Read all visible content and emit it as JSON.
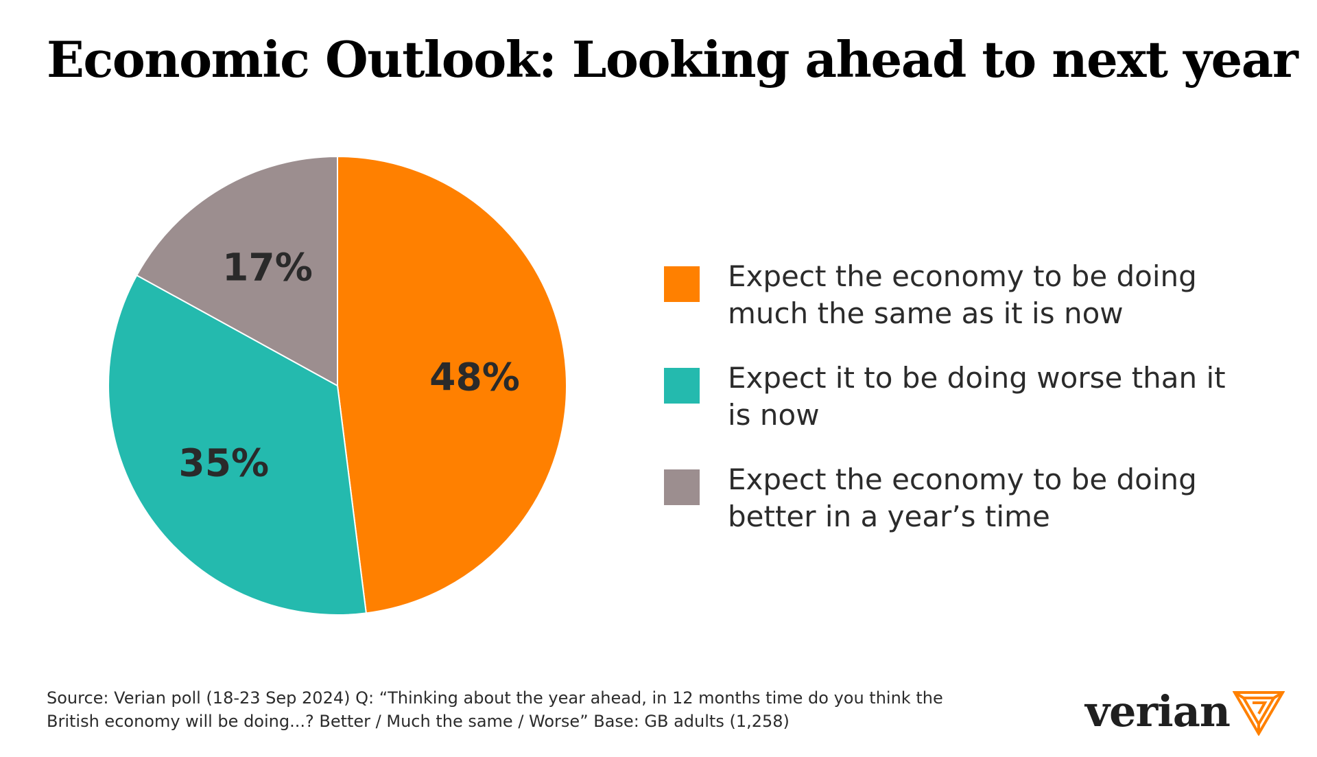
{
  "chart_data": {
    "type": "pie",
    "title": "Economic Outlook: Looking ahead to next year",
    "slices": [
      {
        "label": "Expect the economy to be doing much the same as it is now",
        "value": 48,
        "display": "48%",
        "color": "#FF8000"
      },
      {
        "label": "Expect it to be doing worse than it is now",
        "value": 35,
        "display": "35%",
        "color": "#24BAAE"
      },
      {
        "label": "Expect the economy to be doing better in a year’s time",
        "value": 17,
        "display": "17%",
        "color": "#9C8E8F"
      }
    ],
    "legend_position": "right"
  },
  "source": "Source: Verian poll (18-23 Sep 2024) Q: “Thinking about the year ahead, in 12 months time do you think the British economy will be doing...? Better / Much the same / Worse” Base: GB adults (1,258)",
  "brand": {
    "name": "verian",
    "logo_icon": "verian-triangle-mark-icon",
    "accent": "#FF8000"
  }
}
